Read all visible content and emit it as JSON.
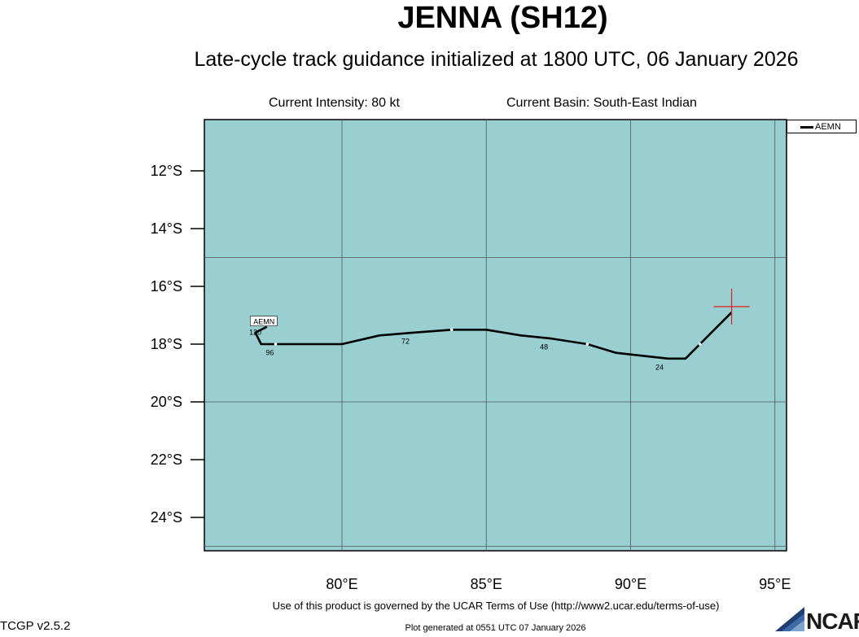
{
  "header": {
    "title": "JENNA (SH12)",
    "subtitle": "Late-cycle track guidance initialized at 1800 UTC, 06 January 2026",
    "current_intensity": "Current Intensity: 80 kt",
    "current_basin": "Current Basin: South-East Indian"
  },
  "map": {
    "background_color": "#99cfd0",
    "lon_ticks": [
      "80°E",
      "85°E",
      "90°E",
      "95°E"
    ],
    "lat_ticks": [
      "12°S",
      "14°S",
      "16°S",
      "18°S",
      "20°S",
      "22°S",
      "24°S"
    ],
    "current_position": {
      "lon": 93.5,
      "lat": -16.7,
      "marker_color": "#e02020"
    }
  },
  "legend": {
    "entries": [
      {
        "name": "AEMN",
        "color": "#000000"
      }
    ]
  },
  "tracks": [
    {
      "name": "AEMN",
      "color": "#000000",
      "points": [
        {
          "lon": 93.5,
          "lat": -16.9
        },
        {
          "lon": 92.4,
          "lat": -18.0
        },
        {
          "lon": 91.9,
          "lat": -18.5
        },
        {
          "lon": 91.3,
          "lat": -18.5
        },
        {
          "lon": 89.5,
          "lat": -18.3
        },
        {
          "lon": 88.5,
          "lat": -18.0
        },
        {
          "lon": 87.2,
          "lat": -17.8
        },
        {
          "lon": 86.2,
          "lat": -17.7
        },
        {
          "lon": 85.0,
          "lat": -17.5
        },
        {
          "lon": 83.8,
          "lat": -17.5
        },
        {
          "lon": 82.5,
          "lat": -17.6
        },
        {
          "lon": 81.3,
          "lat": -17.7
        },
        {
          "lon": 80.0,
          "lat": -18.0
        },
        {
          "lon": 77.7,
          "lat": -18.0
        },
        {
          "lon": 77.2,
          "lat": -18.0
        },
        {
          "lon": 77.0,
          "lat": -17.6
        },
        {
          "lon": 77.4,
          "lat": -17.4
        }
      ],
      "tau_labels": [
        {
          "text": "24",
          "lon": 91.0,
          "lat": -18.6
        },
        {
          "text": "48",
          "lon": 87.0,
          "lat": -17.9
        },
        {
          "text": "72",
          "lon": 82.2,
          "lat": -17.7
        },
        {
          "text": "96",
          "lon": 77.5,
          "lat": -18.1
        },
        {
          "text": "120",
          "lon": 77.0,
          "lat": -17.4
        }
      ],
      "end_label": {
        "text": "AEMN",
        "lon": 77.3,
        "lat": -17.2
      }
    }
  ],
  "footer": {
    "terms": "Use of this product is governed by the UCAR Terms of Use (http://www2.ucar.edu/terms-of-use)",
    "generated": "Plot generated at 0551 UTC   07 January 2026",
    "version": "TCGP v2.5.2",
    "logo_text": "NCAR"
  }
}
